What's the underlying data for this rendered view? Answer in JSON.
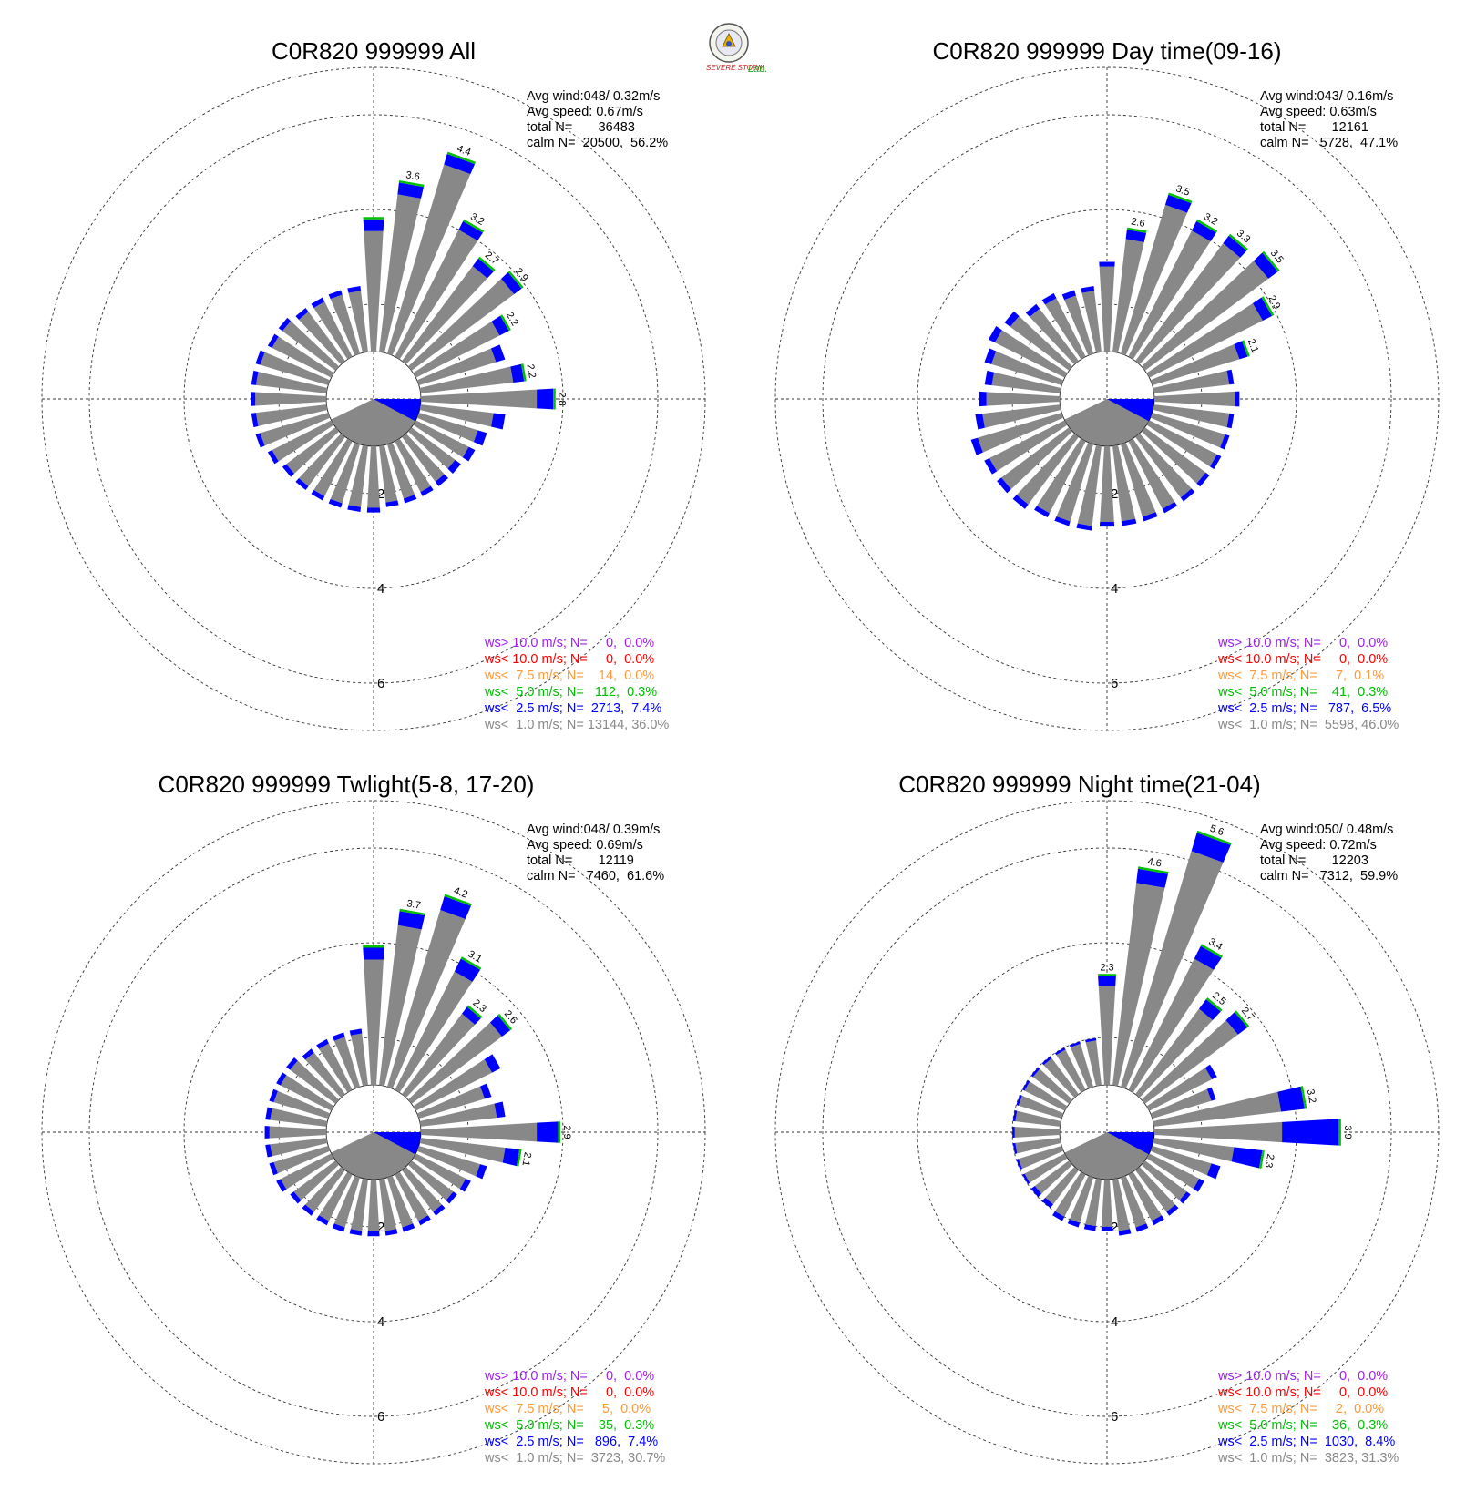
{
  "logo": {
    "text_main": "SEVERE STORM",
    "text_lab": "Lab."
  },
  "colors": {
    "gt10": "#a020f0",
    "lt10": "#ff0000",
    "lt75": "#ff9a3c",
    "lt5": "#00c000",
    "lt25": "#0000ff",
    "lt1": "#888888"
  },
  "chart_data": [
    {
      "type": "polar-bar",
      "title": "C0R820 999999 All",
      "stats": {
        "avg_wind": "Avg wind:048/ 0.32m/s",
        "avg_speed": "Avg speed: 0.67m/s",
        "total_n": "total N=       36483",
        "calm_n": "calm N=  20500,  56.2%"
      },
      "radial_labels": [
        "2",
        "4",
        "6"
      ],
      "legend": [
        {
          "key": "gt10",
          "text": "ws> 10.0 m/s; N=     0,  0.0%"
        },
        {
          "key": "lt10",
          "text": "ws< 10.0 m/s; N=     0,  0.0%"
        },
        {
          "key": "lt75",
          "text": "ws<  7.5 m/s; N=    14,  0.0%"
        },
        {
          "key": "lt5",
          "text": "ws<  5.0 m/s; N=   112,  0.3%"
        },
        {
          "key": "lt25",
          "text": "ws<  2.5 m/s; N=  2713,  7.4%"
        },
        {
          "key": "lt1",
          "text": "ws<  1.0 m/s; N= 13144, 36.0%"
        }
      ],
      "bars": [
        [
          0,
          2.8,
          0.25,
          ""
        ],
        [
          10,
          3.6,
          0.25,
          "3.6"
        ],
        [
          20,
          4.4,
          0.23,
          "4.4"
        ],
        [
          30,
          3.2,
          0.2,
          "3.2"
        ],
        [
          40,
          2.7,
          0.2,
          "2.7"
        ],
        [
          50,
          2.9,
          0.2,
          "2.9"
        ],
        [
          60,
          2.2,
          0.22,
          "2.2"
        ],
        [
          70,
          1.9,
          0.2,
          ""
        ],
        [
          80,
          2.2,
          0.23,
          "2.2"
        ],
        [
          90,
          2.8,
          0.35,
          "2.8"
        ],
        [
          100,
          1.8,
          0.25,
          ""
        ],
        [
          110,
          1.5,
          0.2,
          ""
        ],
        [
          120,
          1.4,
          0.15,
          ""
        ],
        [
          130,
          1.3,
          0.15,
          ""
        ],
        [
          140,
          1.3,
          0.12,
          ""
        ],
        [
          150,
          1.3,
          0.1,
          ""
        ],
        [
          160,
          1.3,
          0.1,
          ""
        ],
        [
          170,
          1.3,
          0.1,
          ""
        ],
        [
          180,
          1.4,
          0.1,
          ""
        ],
        [
          190,
          1.4,
          0.1,
          ""
        ],
        [
          200,
          1.4,
          0.1,
          ""
        ],
        [
          210,
          1.4,
          0.1,
          ""
        ],
        [
          220,
          1.4,
          0.1,
          ""
        ],
        [
          230,
          1.4,
          0.1,
          ""
        ],
        [
          240,
          1.5,
          0.1,
          ""
        ],
        [
          250,
          1.6,
          0.1,
          ""
        ],
        [
          260,
          1.6,
          0.1,
          ""
        ],
        [
          270,
          1.6,
          0.1,
          ""
        ],
        [
          280,
          1.6,
          0.1,
          ""
        ],
        [
          290,
          1.6,
          0.1,
          ""
        ],
        [
          300,
          1.5,
          0.1,
          ""
        ],
        [
          310,
          1.5,
          0.1,
          ""
        ],
        [
          320,
          1.4,
          0.1,
          ""
        ],
        [
          330,
          1.4,
          0.1,
          ""
        ],
        [
          340,
          1.4,
          0.1,
          ""
        ],
        [
          350,
          1.4,
          0.1,
          ""
        ]
      ]
    },
    {
      "type": "polar-bar",
      "title": "C0R820 999999 Day time(09-16)",
      "stats": {
        "avg_wind": "Avg wind:043/ 0.16m/s",
        "avg_speed": "Avg speed: 0.63m/s",
        "total_n": "total N=       12161",
        "calm_n": "calm N=   5728,  47.1%"
      },
      "radial_labels": [
        "2",
        "4",
        "6"
      ],
      "legend": [
        {
          "key": "gt10",
          "text": "ws> 10.0 m/s; N=     0,  0.0%"
        },
        {
          "key": "lt10",
          "text": "ws< 10.0 m/s; N=     0,  0.0%"
        },
        {
          "key": "lt75",
          "text": "ws<  7.5 m/s; N=     7,  0.1%"
        },
        {
          "key": "lt5",
          "text": "ws<  5.0 m/s; N=    41,  0.3%"
        },
        {
          "key": "lt25",
          "text": "ws<  2.5 m/s; N=   787,  6.5%"
        },
        {
          "key": "lt1",
          "text": "ws<  1.0 m/s; N=  5598, 46.0%"
        }
      ],
      "bars": [
        [
          0,
          1.9,
          0.1,
          ""
        ],
        [
          10,
          2.6,
          0.2,
          "2.6"
        ],
        [
          20,
          3.5,
          0.22,
          "3.5"
        ],
        [
          30,
          3.2,
          0.22,
          "3.2"
        ],
        [
          40,
          3.3,
          0.2,
          "3.3"
        ],
        [
          50,
          3.5,
          0.25,
          "3.5"
        ],
        [
          60,
          2.9,
          0.22,
          "2.9"
        ],
        [
          70,
          2.1,
          0.18,
          "2.1"
        ],
        [
          80,
          1.7,
          0.1,
          ""
        ],
        [
          90,
          1.8,
          0.1,
          ""
        ],
        [
          100,
          1.7,
          0.1,
          ""
        ],
        [
          110,
          1.7,
          0.1,
          ""
        ],
        [
          120,
          1.7,
          0.1,
          ""
        ],
        [
          130,
          1.7,
          0.1,
          ""
        ],
        [
          140,
          1.7,
          0.1,
          ""
        ],
        [
          150,
          1.7,
          0.1,
          ""
        ],
        [
          160,
          1.7,
          0.1,
          ""
        ],
        [
          170,
          1.7,
          0.1,
          ""
        ],
        [
          180,
          1.7,
          0.1,
          ""
        ],
        [
          190,
          1.8,
          0.1,
          ""
        ],
        [
          200,
          1.8,
          0.1,
          ""
        ],
        [
          210,
          1.8,
          0.1,
          ""
        ],
        [
          220,
          1.9,
          0.12,
          ""
        ],
        [
          230,
          1.9,
          0.12,
          ""
        ],
        [
          240,
          1.9,
          0.12,
          ""
        ],
        [
          250,
          2.0,
          0.15,
          ""
        ],
        [
          260,
          1.8,
          0.15,
          ""
        ],
        [
          270,
          1.7,
          0.15,
          ""
        ],
        [
          280,
          1.6,
          0.15,
          ""
        ],
        [
          290,
          1.7,
          0.15,
          ""
        ],
        [
          300,
          1.8,
          0.15,
          ""
        ],
        [
          310,
          1.7,
          0.15,
          ""
        ],
        [
          320,
          1.5,
          0.12,
          ""
        ],
        [
          330,
          1.5,
          0.12,
          ""
        ],
        [
          340,
          1.4,
          0.12,
          ""
        ],
        [
          350,
          1.4,
          0.1,
          ""
        ]
      ]
    },
    {
      "type": "polar-bar",
      "title": "C0R820 999999 Twlight(5-8, 17-20)",
      "stats": {
        "avg_wind": "Avg wind:048/ 0.39m/s",
        "avg_speed": "Avg speed: 0.69m/s",
        "total_n": "total N=       12119",
        "calm_n": "calm N=   7460,  61.6%"
      },
      "radial_labels": [
        "2",
        "4",
        "6"
      ],
      "legend": [
        {
          "key": "gt10",
          "text": "ws> 10.0 m/s; N=     0,  0.0%"
        },
        {
          "key": "lt10",
          "text": "ws< 10.0 m/s; N=     0,  0.0%"
        },
        {
          "key": "lt75",
          "text": "ws<  7.5 m/s; N=     5,  0.0%"
        },
        {
          "key": "lt5",
          "text": "ws<  5.0 m/s; N=    35,  0.3%"
        },
        {
          "key": "lt25",
          "text": "ws<  2.5 m/s; N=   896,  7.4%"
        },
        {
          "key": "lt1",
          "text": "ws<  1.0 m/s; N=  3723, 30.7%"
        }
      ],
      "bars": [
        [
          0,
          2.9,
          0.25,
          ""
        ],
        [
          10,
          3.7,
          0.3,
          "3.7"
        ],
        [
          20,
          4.2,
          0.3,
          "4.2"
        ],
        [
          30,
          3.1,
          0.3,
          "3.1"
        ],
        [
          40,
          2.3,
          0.18,
          "2.3"
        ],
        [
          50,
          2.6,
          0.22,
          "2.6"
        ],
        [
          60,
          2.0,
          0.2,
          ""
        ],
        [
          70,
          1.6,
          0.15,
          ""
        ],
        [
          80,
          1.8,
          0.18,
          ""
        ],
        [
          90,
          2.9,
          0.45,
          "2.9"
        ],
        [
          100,
          2.1,
          0.3,
          "2.1"
        ],
        [
          110,
          1.5,
          0.15,
          ""
        ],
        [
          120,
          1.3,
          0.12,
          ""
        ],
        [
          130,
          1.2,
          0.1,
          ""
        ],
        [
          140,
          1.2,
          0.1,
          ""
        ],
        [
          150,
          1.2,
          0.1,
          ""
        ],
        [
          160,
          1.2,
          0.1,
          ""
        ],
        [
          170,
          1.2,
          0.1,
          ""
        ],
        [
          180,
          1.2,
          0.1,
          ""
        ],
        [
          190,
          1.2,
          0.1,
          ""
        ],
        [
          200,
          1.2,
          0.1,
          ""
        ],
        [
          210,
          1.2,
          0.1,
          ""
        ],
        [
          220,
          1.2,
          0.1,
          ""
        ],
        [
          230,
          1.2,
          0.1,
          ""
        ],
        [
          240,
          1.3,
          0.1,
          ""
        ],
        [
          250,
          1.3,
          0.1,
          ""
        ],
        [
          260,
          1.3,
          0.1,
          ""
        ],
        [
          270,
          1.3,
          0.1,
          ""
        ],
        [
          280,
          1.3,
          0.1,
          ""
        ],
        [
          290,
          1.3,
          0.1,
          ""
        ],
        [
          300,
          1.3,
          0.1,
          ""
        ],
        [
          310,
          1.3,
          0.1,
          ""
        ],
        [
          320,
          1.2,
          0.1,
          ""
        ],
        [
          330,
          1.2,
          0.1,
          ""
        ],
        [
          340,
          1.2,
          0.1,
          ""
        ],
        [
          350,
          1.2,
          0.1,
          ""
        ]
      ]
    },
    {
      "type": "polar-bar",
      "title": "C0R820 999999 Night time(21-04)",
      "stats": {
        "avg_wind": "Avg wind:050/ 0.48m/s",
        "avg_speed": "Avg speed: 0.72m/s",
        "total_n": "total N=       12203",
        "calm_n": "calm N=   7312,  59.9%"
      },
      "radial_labels": [
        "2",
        "4",
        "6"
      ],
      "legend": [
        {
          "key": "gt10",
          "text": "ws> 10.0 m/s; N=     0,  0.0%"
        },
        {
          "key": "lt10",
          "text": "ws< 10.0 m/s; N=     0,  0.0%"
        },
        {
          "key": "lt75",
          "text": "ws<  7.5 m/s; N=     2,  0.0%"
        },
        {
          "key": "lt5",
          "text": "ws<  5.0 m/s; N=    36,  0.3%"
        },
        {
          "key": "lt25",
          "text": "ws<  2.5 m/s; N=  1030,  8.4%"
        },
        {
          "key": "lt1",
          "text": "ws<  1.0 m/s; N=  3823, 31.3%"
        }
      ],
      "bars": [
        [
          0,
          2.3,
          0.2,
          "2.3"
        ],
        [
          10,
          4.6,
          0.3,
          "4.6"
        ],
        [
          20,
          5.6,
          0.4,
          "5.6"
        ],
        [
          30,
          3.4,
          0.3,
          "3.4"
        ],
        [
          40,
          2.5,
          0.25,
          "2.5"
        ],
        [
          50,
          2.7,
          0.25,
          "2.7"
        ],
        [
          60,
          1.6,
          0.12,
          ""
        ],
        [
          70,
          1.4,
          0.1,
          ""
        ],
        [
          80,
          3.2,
          0.5,
          "3.2"
        ],
        [
          90,
          3.9,
          1.2,
          "3.9"
        ],
        [
          100,
          2.3,
          0.6,
          "2.3"
        ],
        [
          110,
          1.5,
          0.2,
          ""
        ],
        [
          120,
          1.3,
          0.12,
          ""
        ],
        [
          130,
          1.2,
          0.1,
          ""
        ],
        [
          140,
          1.2,
          0.1,
          ""
        ],
        [
          150,
          1.2,
          0.1,
          ""
        ],
        [
          160,
          1.2,
          0.1,
          ""
        ],
        [
          170,
          1.2,
          0.1,
          ""
        ],
        [
          180,
          1.1,
          0.1,
          ""
        ],
        [
          190,
          1.1,
          0.1,
          ""
        ],
        [
          200,
          1.1,
          0.1,
          ""
        ],
        [
          210,
          1.1,
          0.1,
          ""
        ],
        [
          220,
          1.0,
          0.1,
          ""
        ],
        [
          230,
          1.0,
          0.1,
          ""
        ],
        [
          240,
          1.0,
          0.05,
          ""
        ],
        [
          250,
          1.0,
          0.05,
          ""
        ],
        [
          260,
          1.0,
          0.05,
          ""
        ],
        [
          270,
          1.0,
          0.05,
          ""
        ],
        [
          280,
          1.0,
          0.05,
          ""
        ],
        [
          290,
          1.0,
          0.05,
          ""
        ],
        [
          300,
          1.0,
          0.05,
          ""
        ],
        [
          310,
          1.0,
          0.05,
          ""
        ],
        [
          320,
          1.0,
          0.05,
          ""
        ],
        [
          330,
          1.0,
          0.05,
          ""
        ],
        [
          340,
          1.0,
          0.05,
          ""
        ],
        [
          350,
          1.0,
          0.05,
          ""
        ]
      ]
    }
  ]
}
